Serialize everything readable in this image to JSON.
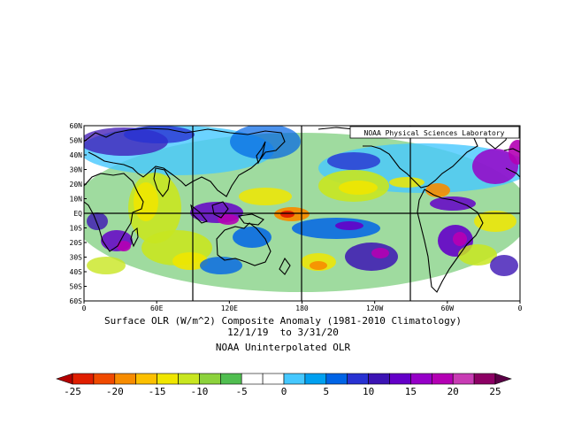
{
  "map": {
    "credit": "NOAA Physical Sciences Laboratory",
    "lat_labels": [
      "60N",
      "50N",
      "40N",
      "30N",
      "20N",
      "10N",
      "EQ",
      "10S",
      "20S",
      "30S",
      "40S",
      "50S",
      "60S"
    ],
    "lon_labels": [
      "0",
      "60E",
      "120E",
      "180",
      "120W",
      "60W",
      "0"
    ],
    "grid_lines_lon": [
      "90E",
      "180",
      "90W"
    ],
    "grid_lines_lat": [
      "EQ"
    ],
    "title_line1": "Surface OLR (W/m^2) Composite Anomaly (1981-2010 Climatology)",
    "title_line2": "12/1/19  to 3/31/20",
    "subtitle": "NOAA Uninterpolated OLR"
  },
  "colorbar": {
    "labels": [
      "-25",
      "-20",
      "-15",
      "-10",
      "-5",
      "0",
      "5",
      "10",
      "15",
      "20",
      "25"
    ],
    "colors": [
      "#b40000",
      "#e01e00",
      "#f04a00",
      "#f78c00",
      "#fcc000",
      "#f0e600",
      "#c8e620",
      "#8cd23c",
      "#50be50",
      "#ffffff",
      "#ffffff",
      "#46c8ff",
      "#00a0f0",
      "#0064e6",
      "#2832d2",
      "#3c14b4",
      "#6400c8",
      "#9600c8",
      "#b400b4",
      "#c83cb4",
      "#8c0064",
      "#5a0046"
    ]
  },
  "palette": {
    "red": "#e01e00",
    "orange": "#f78c00",
    "yellow": "#f0e600",
    "lightgreen": "#c8e620",
    "green": "#50be50",
    "cyan": "#46c8ff",
    "lightblue": "#00a0f0",
    "blue": "#0064e6",
    "darkblue": "#2832d2",
    "indigo": "#3c14b4",
    "violet": "#6400c8",
    "purple": "#9600c8",
    "magenta": "#b400b4"
  }
}
